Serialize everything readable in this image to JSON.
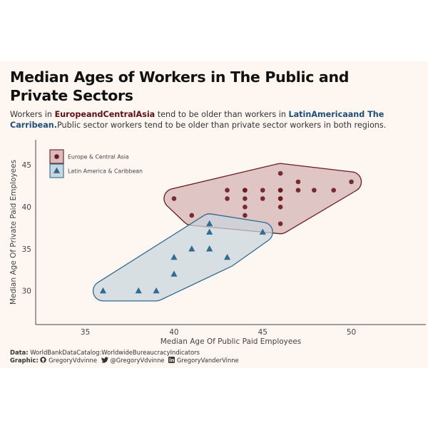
{
  "title": "Median Ages of Workers in The Public and Private Sectors",
  "subtitle": {
    "part1": "Workers in ",
    "eca_name": "EuropeandCentralAsia",
    "part2": " tend to be older than workers in ",
    "lac_name": "LatinAmericaand The Carribean.",
    "part3": "Public sector workers tend to be older than private sector workers in both regions."
  },
  "caption": {
    "data_label": "Data:",
    "data_text": " WorldBankDataCatalog:WorldwideBureaucracyIndicators",
    "graphic_label": "Graphic:",
    "github_icon": "github-icon",
    "github": " GregoryVdvinne",
    "twitter_icon": "twitter-icon",
    "twitter": " @GregoryVdvinne",
    "linkedin_icon": "linkedin-icon",
    "linkedin": " GregoryVanderVinne"
  },
  "colors": {
    "eca": "#6b1a20",
    "eca_fill": "#d9bcbb",
    "lac": "#2f6b93",
    "lac_fill": "#c9d6de"
  },
  "chart_data": {
    "type": "scatter",
    "xlabel": "Median Age Of Public Paid Employees",
    "ylabel": "Median Age Of Private Paid Employees",
    "xlim": [
      32.2,
      54.2
    ],
    "ylim": [
      26.0,
      48.0
    ],
    "xticks": [
      35,
      40,
      45,
      50
    ],
    "yticks": [
      30,
      35,
      40,
      45
    ],
    "grid": false,
    "legend_position": "top-left",
    "series": [
      {
        "name": "Europe & Central Asia",
        "key": "eca",
        "marker": "circle",
        "points": [
          [
            40,
            41
          ],
          [
            41,
            39
          ],
          [
            43,
            42
          ],
          [
            43,
            41
          ],
          [
            44,
            42
          ],
          [
            44,
            42
          ],
          [
            44,
            41
          ],
          [
            44,
            40
          ],
          [
            44,
            39
          ],
          [
            45,
            42
          ],
          [
            45,
            41
          ],
          [
            46,
            44
          ],
          [
            46,
            42
          ],
          [
            46,
            42
          ],
          [
            46,
            41
          ],
          [
            46,
            41
          ],
          [
            46,
            40
          ],
          [
            46,
            38
          ],
          [
            47,
            43
          ],
          [
            47,
            42
          ],
          [
            47.9,
            42
          ],
          [
            49,
            42
          ],
          [
            50,
            43
          ]
        ]
      },
      {
        "name": "Latin America & Caribbean",
        "key": "lac",
        "marker": "triangle",
        "points": [
          [
            36,
            30
          ],
          [
            38,
            30
          ],
          [
            39,
            30
          ],
          [
            40,
            34
          ],
          [
            40,
            32
          ],
          [
            41,
            35
          ],
          [
            42,
            38
          ],
          [
            42,
            37
          ],
          [
            42,
            35
          ],
          [
            42,
            35
          ],
          [
            43,
            34
          ],
          [
            45,
            37
          ]
        ]
      }
    ]
  }
}
